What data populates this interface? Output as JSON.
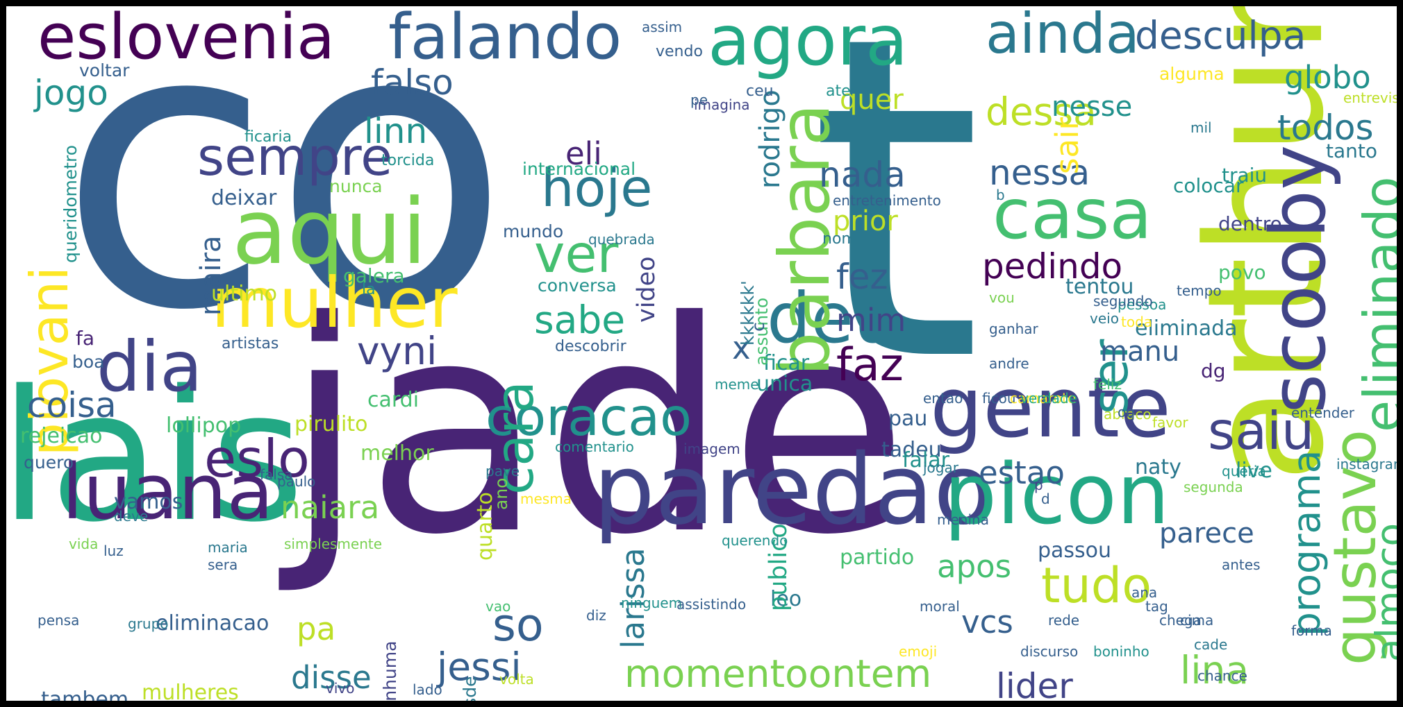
{
  "palette": [
    "#440154",
    "#482475",
    "#414487",
    "#355f8d",
    "#2a788e",
    "#21918c",
    "#22a884",
    "#44bf70",
    "#7ad151",
    "#bddf26",
    "#fde725"
  ],
  "words": [
    {
      "t": "co",
      "c": 3
    },
    {
      "t": "t",
      "c": 4
    },
    {
      "t": "jade",
      "c": 1
    },
    {
      "t": "arthur",
      "c": 9
    },
    {
      "t": "lais",
      "c": 6
    },
    {
      "t": "paredao",
      "c": 2
    },
    {
      "t": "picon",
      "c": 6
    },
    {
      "t": "gente",
      "c": 2
    },
    {
      "t": "aqui",
      "c": 8
    },
    {
      "t": "mulher",
      "c": 10
    },
    {
      "t": "luana",
      "c": 1
    },
    {
      "t": "dia",
      "c": 2
    },
    {
      "t": "deu",
      "c": 4
    },
    {
      "t": "casa",
      "c": 7
    },
    {
      "t": "agora",
      "c": 6
    },
    {
      "t": "eslovenia",
      "c": 0
    },
    {
      "t": "falando",
      "c": 3
    },
    {
      "t": "ainda",
      "c": 4
    },
    {
      "t": "scooby",
      "c": 2
    },
    {
      "t": "barbara",
      "c": 8
    },
    {
      "t": "coracao",
      "c": 5
    },
    {
      "t": "saiu",
      "c": 2
    },
    {
      "t": "gustavo",
      "c": 8
    },
    {
      "t": "eliminado",
      "c": 7
    },
    {
      "t": "piovani",
      "c": 10
    },
    {
      "t": "hoje",
      "c": 4
    },
    {
      "t": "ver",
      "c": 7
    },
    {
      "t": "sempre",
      "c": 2
    },
    {
      "t": "eslo",
      "c": 1
    },
    {
      "t": "cara",
      "c": 6
    },
    {
      "t": "tudo",
      "c": 9
    },
    {
      "t": "so",
      "c": 3
    },
    {
      "t": "faz",
      "c": 0
    },
    {
      "t": "ser",
      "c": 5
    },
    {
      "t": "sabe",
      "c": 6
    },
    {
      "t": "desculpa",
      "c": 3
    },
    {
      "t": "lina",
      "c": 8
    },
    {
      "t": "jessi",
      "c": 3
    },
    {
      "t": "momentoontem",
      "c": 8
    },
    {
      "t": "dessa",
      "c": 9
    },
    {
      "t": "pedindo",
      "c": 0
    },
    {
      "t": "nessa",
      "c": 3
    },
    {
      "t": "falso",
      "c": 3
    },
    {
      "t": "jogo",
      "c": 5
    },
    {
      "t": "linn",
      "c": 5
    },
    {
      "t": "eli",
      "c": 1
    },
    {
      "t": "programa",
      "c": 5
    },
    {
      "t": "almoco",
      "c": 7
    },
    {
      "t": "coisa",
      "c": 3
    },
    {
      "t": "vyni",
      "c": 2
    },
    {
      "t": "nada",
      "c": 3
    },
    {
      "t": "fez",
      "c": 3
    },
    {
      "t": "mim",
      "c": 2
    },
    {
      "t": "todos",
      "c": 4
    },
    {
      "t": "globo",
      "c": 5
    },
    {
      "t": "x",
      "c": 3
    },
    {
      "t": "larissa",
      "c": 4
    },
    {
      "t": "lider",
      "c": 2
    },
    {
      "t": "disse",
      "c": 4
    },
    {
      "t": "estao",
      "c": 3
    },
    {
      "t": "apos",
      "c": 7
    },
    {
      "t": "naiara",
      "c": 8
    },
    {
      "t": "pa",
      "c": 9
    },
    {
      "t": "vcs",
      "c": 3
    },
    {
      "t": "parece",
      "c": 3
    },
    {
      "t": "sair",
      "c": 10
    },
    {
      "t": "quer",
      "c": 9
    },
    {
      "t": "prior",
      "c": 9
    },
    {
      "t": "nesse",
      "c": 5
    },
    {
      "t": "maira",
      "c": 3
    },
    {
      "t": "rodrigo",
      "c": 4
    },
    {
      "t": "video",
      "c": 2
    },
    {
      "t": "manu",
      "c": 3
    },
    {
      "t": "eliminacao",
      "c": 3
    },
    {
      "t": "lollipop",
      "c": 7
    },
    {
      "t": "pirulito",
      "c": 9
    },
    {
      "t": "nenhuma",
      "c": 2
    },
    {
      "t": "mulheres",
      "c": 9
    },
    {
      "t": "tambem",
      "c": 3
    },
    {
      "t": "vamos",
      "c": 3
    },
    {
      "t": "pau",
      "c": 3
    },
    {
      "t": "leo",
      "c": 4
    },
    {
      "t": "passou",
      "c": 3
    },
    {
      "t": "partido",
      "c": 7
    },
    {
      "t": "publico",
      "c": 6
    },
    {
      "t": "quarto",
      "c": 9
    },
    {
      "t": "ano",
      "c": 8
    },
    {
      "t": "eliminada",
      "c": 4
    },
    {
      "t": "tentou",
      "c": 4
    },
    {
      "t": "live",
      "c": 5
    },
    {
      "t": "naty",
      "c": 4
    },
    {
      "t": "tadeu",
      "c": 3
    },
    {
      "t": "falar",
      "c": 5
    },
    {
      "t": "unica",
      "c": 5
    },
    {
      "t": "ficar",
      "c": 5
    },
    {
      "t": "cardi",
      "c": 7
    },
    {
      "t": "melhor",
      "c": 8
    },
    {
      "t": "galera",
      "c": 7
    },
    {
      "t": "ultimo",
      "c": 9
    },
    {
      "t": "deixar",
      "c": 3
    },
    {
      "t": "internacional",
      "c": 6
    },
    {
      "t": "conversa",
      "c": 5
    },
    {
      "t": "mundo",
      "c": 3
    },
    {
      "t": "nunca",
      "c": 8
    },
    {
      "t": "queridometro",
      "c": 5
    },
    {
      "t": "dentro",
      "c": 2
    },
    {
      "t": "povo",
      "c": 7
    },
    {
      "t": "traiu",
      "c": 5
    },
    {
      "t": "colocar",
      "c": 5
    },
    {
      "t": "tanto",
      "c": 4
    },
    {
      "t": "voltar",
      "c": 3
    },
    {
      "t": "quero",
      "c": 3
    },
    {
      "t": "rejeicao",
      "c": 7
    },
    {
      "t": "boa",
      "c": 3
    },
    {
      "t": "fa",
      "c": 1
    },
    {
      "t": "dg",
      "c": 1
    },
    {
      "t": "la",
      "c": 5
    },
    {
      "t": "artistas",
      "c": 3
    },
    {
      "t": "quebrada",
      "c": 4
    },
    {
      "t": "descobrir",
      "c": 3
    },
    {
      "t": "ficaria",
      "c": 5
    },
    {
      "t": "torcida",
      "c": 5
    },
    {
      "t": "imagina",
      "c": 2
    },
    {
      "t": "vendo",
      "c": 3
    },
    {
      "t": "assim",
      "c": 3
    },
    {
      "t": "alguma",
      "c": 10
    },
    {
      "t": "pessoa",
      "c": 5
    },
    {
      "t": "mil",
      "c": 4
    },
    {
      "t": "entrevista",
      "c": 9
    },
    {
      "t": "ceu",
      "c": 3
    },
    {
      "t": "pe",
      "c": 3
    },
    {
      "t": "ate",
      "c": 5
    },
    {
      "t": "b",
      "c": 4
    },
    {
      "t": "entretenimento",
      "c": 3
    },
    {
      "t": "nome",
      "c": 4
    },
    {
      "t": "kkkkkk'",
      "c": 4
    },
    {
      "t": "tempo",
      "c": 3
    },
    {
      "t": "segundo",
      "c": 3
    },
    {
      "t": "veio",
      "c": 4
    },
    {
      "t": "toda",
      "c": 10
    },
    {
      "t": "ganhar",
      "c": 3
    },
    {
      "t": "andre",
      "c": 3
    },
    {
      "t": "ficou",
      "c": 3
    },
    {
      "t": "vou",
      "c": 8
    },
    {
      "t": "assunto",
      "c": 7
    },
    {
      "t": "c",
      "c": 3
    },
    {
      "t": "feliz",
      "c": 7
    },
    {
      "t": "camarote",
      "c": 10
    },
    {
      "t": "entao",
      "c": 3
    },
    {
      "t": "meme",
      "c": 5
    },
    {
      "t": "verdade",
      "c": 6
    },
    {
      "t": "favor",
      "c": 9
    },
    {
      "t": "abraco",
      "c": 9
    },
    {
      "t": "entender",
      "c": 3
    },
    {
      "t": "oq",
      "c": 3
    },
    {
      "t": "queria",
      "c": 5
    },
    {
      "t": "instagram",
      "c": 4
    },
    {
      "t": "segunda",
      "c": 8
    },
    {
      "t": "ana",
      "c": 3
    },
    {
      "t": "antes",
      "c": 3
    },
    {
      "t": "chega",
      "c": 3
    },
    {
      "t": "forma",
      "c": 3
    },
    {
      "t": "boninho",
      "c": 5
    },
    {
      "t": "cade",
      "c": 4
    },
    {
      "t": "discurso",
      "c": 3
    },
    {
      "t": "emoji",
      "c": 10
    },
    {
      "t": "moral",
      "c": 3
    },
    {
      "t": "chance",
      "c": 3
    },
    {
      "t": "jogar",
      "c": 4
    },
    {
      "t": "querendo",
      "c": 5
    },
    {
      "t": "imagem",
      "c": 2
    },
    {
      "t": "comentario",
      "c": 5
    },
    {
      "t": "mesma",
      "c": 10
    },
    {
      "t": "ninguem",
      "c": 5
    },
    {
      "t": "assistindo",
      "c": 3
    },
    {
      "t": "diz",
      "c": 3
    },
    {
      "t": "volta",
      "c": 9
    },
    {
      "t": "vivo",
      "c": 2
    },
    {
      "t": "lado",
      "c": 3
    },
    {
      "t": "desde",
      "c": 4
    },
    {
      "t": "vao",
      "c": 7
    },
    {
      "t": "pave",
      "c": 4
    },
    {
      "t": "grupo",
      "c": 4
    },
    {
      "t": "pensa",
      "c": 3
    },
    {
      "t": "tag",
      "c": 3
    },
    {
      "t": "cima",
      "c": 3
    },
    {
      "t": "rede",
      "c": 3
    },
    {
      "t": "cedo",
      "c": 3
    },
    {
      "t": "maria",
      "c": 4
    },
    {
      "t": "sera",
      "c": 3
    },
    {
      "t": "menina",
      "c": 3
    },
    {
      "t": "d",
      "c": 3
    },
    {
      "t": "simplesmente",
      "c": 8
    },
    {
      "t": "paulo",
      "c": 3
    },
    {
      "t": "p",
      "c": 2
    },
    {
      "t": "falsa",
      "c": 3
    },
    {
      "t": "deve",
      "c": 4
    },
    {
      "t": "luz",
      "c": 3
    },
    {
      "t": "vida",
      "c": 8
    }
  ]
}
